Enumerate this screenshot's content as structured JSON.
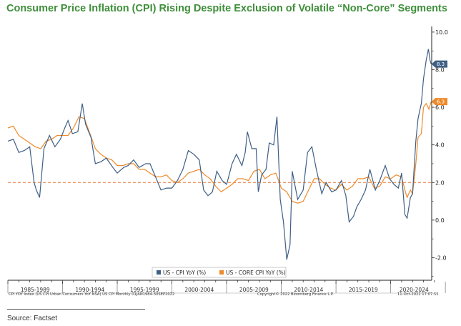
{
  "title": "Consumer Price Inflation (CPI) Rising Despite Exclusion of Volatile “Non-Core” Segments",
  "source": "Source: Factset",
  "footer": {
    "left": "CPI YOY Index (US CPI Urban Consumers YoY NSA) US CPI  Monthly 01JAN1984-30SEP2022",
    "center": "Copyright© 2022 Bloomberg Finance L.P.",
    "right": "11-Oct-2022 17:07:55"
  },
  "colors": {
    "cpi": "#3f5f85",
    "core": "#ee8a2b",
    "ref": "#e8793a",
    "title": "#3f8f3a"
  },
  "chart_data": {
    "type": "line",
    "xlim": [
      1984.0,
      2022.75
    ],
    "ylim": [
      -3.2,
      10.3
    ],
    "yticks": [
      10.0,
      8.0,
      6.0,
      4.0,
      2.0,
      0.0,
      -2.0
    ],
    "ytick_labels": [
      "10.0",
      "8.0",
      "6.0",
      "4.0",
      "2.0",
      "0.0",
      "-2.0"
    ],
    "xticks": [
      1984,
      1989,
      1994,
      1999,
      2004,
      2009,
      2014,
      2019
    ],
    "x_period_labels": [
      "1985-1989",
      "1990-1994",
      "1995-1999",
      "2000-2004",
      "2005-2009",
      "2010-2014",
      "2015-2019",
      "2020-2024"
    ],
    "reference_line": 2.0,
    "legend_position": "bottom-center",
    "series": [
      {
        "name": "US - CPI YoY (%)",
        "last_value_label": "8.3",
        "x": [
          1984.0,
          1984.5,
          1985.0,
          1985.5,
          1986.0,
          1986.4,
          1986.6,
          1986.9,
          1987.3,
          1987.8,
          1988.3,
          1988.8,
          1989.2,
          1989.5,
          1989.9,
          1990.4,
          1990.8,
          1991.1,
          1991.6,
          1992.0,
          1992.5,
          1993.0,
          1993.6,
          1994.0,
          1994.6,
          1995.0,
          1995.5,
          1996.0,
          1996.6,
          1997.0,
          1997.5,
          1998.0,
          1998.5,
          1999.0,
          1999.5,
          2000.0,
          2000.5,
          2001.0,
          2001.5,
          2001.9,
          2002.3,
          2002.7,
          2003.1,
          2003.6,
          2004.0,
          2004.5,
          2004.9,
          2005.4,
          2005.7,
          2005.9,
          2006.3,
          2006.7,
          2006.9,
          2007.2,
          2007.6,
          2007.9,
          2008.3,
          2008.6,
          2008.9,
          2009.2,
          2009.5,
          2009.8,
          2010.0,
          2010.5,
          2011.0,
          2011.4,
          2011.8,
          2012.2,
          2012.7,
          2013.1,
          2013.6,
          2014.0,
          2014.5,
          2014.9,
          2015.2,
          2015.6,
          2015.9,
          2016.3,
          2016.7,
          2017.1,
          2017.6,
          2018.0,
          2018.5,
          2018.9,
          2019.3,
          2019.7,
          2020.0,
          2020.3,
          2020.5,
          2020.8,
          2021.0,
          2021.3,
          2021.5,
          2021.8,
          2022.0,
          2022.25,
          2022.45,
          2022.6,
          2022.7
        ],
        "values": [
          4.2,
          4.3,
          3.6,
          3.7,
          3.9,
          2.0,
          1.6,
          1.2,
          3.8,
          4.5,
          3.9,
          4.3,
          4.9,
          5.3,
          4.6,
          4.7,
          6.2,
          5.1,
          4.4,
          3.0,
          3.1,
          3.3,
          2.8,
          2.5,
          2.8,
          2.9,
          3.2,
          2.8,
          3.0,
          3.0,
          2.3,
          1.6,
          1.7,
          1.7,
          2.1,
          2.7,
          3.7,
          3.5,
          3.2,
          1.6,
          1.3,
          1.5,
          2.6,
          2.1,
          1.9,
          3.0,
          3.5,
          2.9,
          3.6,
          4.7,
          3.8,
          3.8,
          1.5,
          2.4,
          2.7,
          4.1,
          4.0,
          5.5,
          1.1,
          -0.1,
          -2.1,
          -1.3,
          2.6,
          1.1,
          1.6,
          3.6,
          3.9,
          2.7,
          1.4,
          2.0,
          1.5,
          1.6,
          2.1,
          1.3,
          -0.1,
          0.2,
          0.7,
          1.1,
          1.6,
          2.7,
          1.6,
          2.1,
          2.9,
          2.2,
          1.9,
          1.7,
          2.5,
          0.3,
          0.1,
          1.2,
          1.4,
          4.2,
          5.4,
          6.2,
          7.5,
          8.5,
          9.1,
          8.5,
          8.3
        ]
      },
      {
        "name": "US - CORE CPI YoY (%)",
        "last_value_label": "6.3",
        "x": [
          1984.0,
          1984.5,
          1985.0,
          1985.5,
          1986.0,
          1986.5,
          1987.0,
          1987.5,
          1988.0,
          1988.5,
          1989.0,
          1989.5,
          1990.0,
          1990.5,
          1991.0,
          1991.5,
          1992.0,
          1992.5,
          1993.0,
          1993.5,
          1994.0,
          1994.5,
          1995.0,
          1995.5,
          1996.0,
          1996.5,
          1997.0,
          1997.5,
          1998.0,
          1998.5,
          1999.0,
          1999.5,
          2000.0,
          2000.5,
          2001.0,
          2001.5,
          2002.0,
          2002.5,
          2003.0,
          2003.5,
          2004.0,
          2004.5,
          2005.0,
          2005.5,
          2006.0,
          2006.5,
          2007.0,
          2007.5,
          2008.0,
          2008.5,
          2009.0,
          2009.5,
          2010.0,
          2010.5,
          2011.0,
          2011.5,
          2012.0,
          2012.5,
          2013.0,
          2013.5,
          2014.0,
          2014.5,
          2015.0,
          2015.5,
          2016.0,
          2016.5,
          2017.0,
          2017.5,
          2018.0,
          2018.5,
          2019.0,
          2019.5,
          2020.0,
          2020.3,
          2020.5,
          2020.8,
          2021.0,
          2021.3,
          2021.5,
          2021.8,
          2022.0,
          2022.25,
          2022.5,
          2022.7
        ],
        "values": [
          4.9,
          5.0,
          4.5,
          4.3,
          4.1,
          3.9,
          3.8,
          4.2,
          4.3,
          4.5,
          4.5,
          4.5,
          4.9,
          5.5,
          5.4,
          4.6,
          3.8,
          3.5,
          3.3,
          3.2,
          2.9,
          2.9,
          3.0,
          3.0,
          2.7,
          2.7,
          2.5,
          2.3,
          2.3,
          2.4,
          2.1,
          2.0,
          2.2,
          2.5,
          2.6,
          2.7,
          2.4,
          2.2,
          1.8,
          1.5,
          1.7,
          1.9,
          2.2,
          2.2,
          2.1,
          2.6,
          2.7,
          2.2,
          2.4,
          2.5,
          1.7,
          1.5,
          1.0,
          0.9,
          1.0,
          1.6,
          2.2,
          2.2,
          1.9,
          1.7,
          1.6,
          1.9,
          1.6,
          1.8,
          2.2,
          2.2,
          2.3,
          1.7,
          1.8,
          2.3,
          2.2,
          2.4,
          2.3,
          1.6,
          1.2,
          1.6,
          1.4,
          3.0,
          4.4,
          4.6,
          6.0,
          6.2,
          5.9,
          6.3
        ]
      }
    ]
  }
}
